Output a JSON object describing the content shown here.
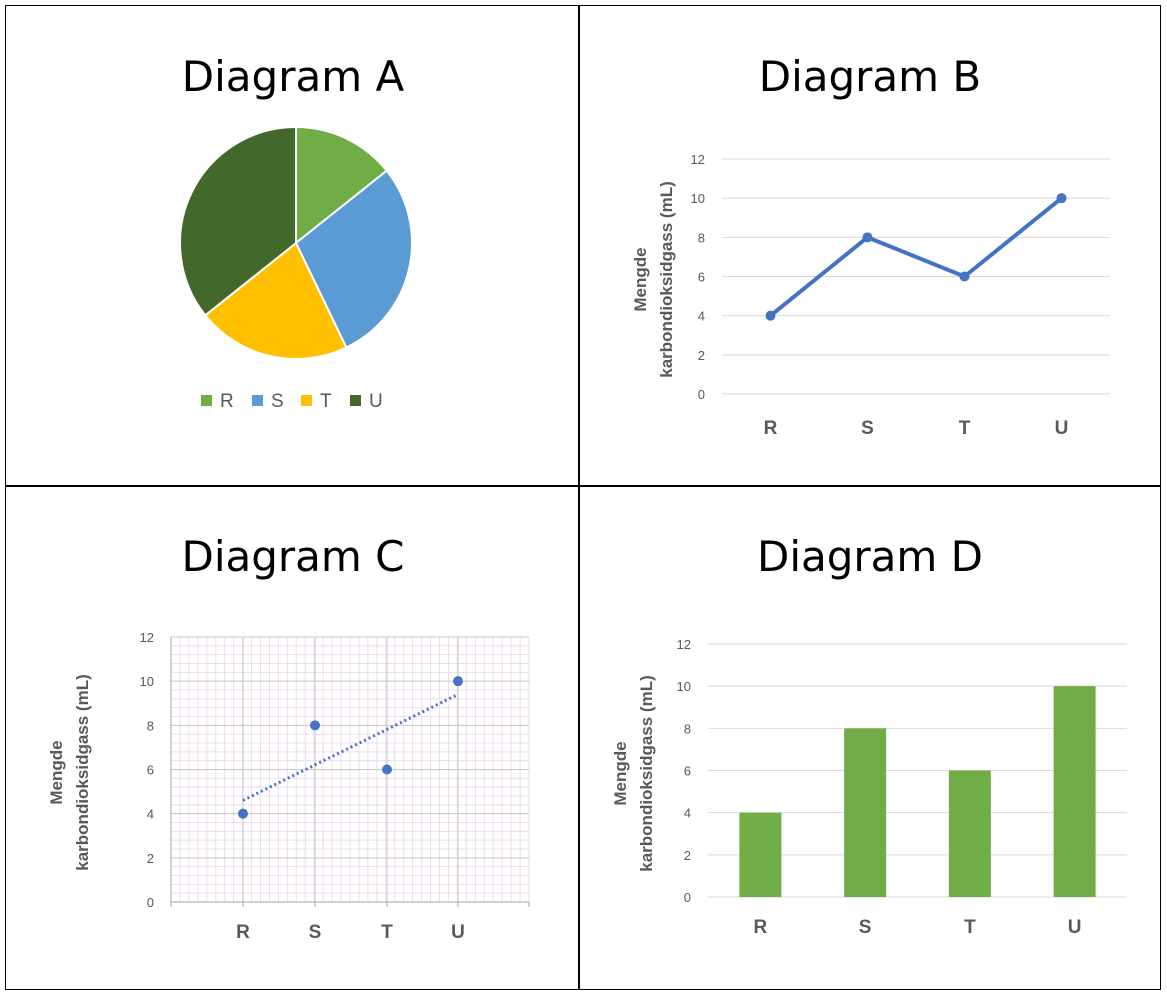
{
  "titles": {
    "a": "Diagram A",
    "b": "Diagram B",
    "c": "Diagram C",
    "d": "Diagram D"
  },
  "chart_data": [
    {
      "type": "pie",
      "title": "Diagram A",
      "categories": [
        "R",
        "S",
        "T",
        "U"
      ],
      "values": [
        4,
        8,
        6,
        10
      ],
      "colors": [
        "#70AD47",
        "#5B9BD5",
        "#FFC000",
        "#43682B"
      ],
      "legend": "bottom"
    },
    {
      "type": "line",
      "title": "Diagram B",
      "categories": [
        "R",
        "S",
        "T",
        "U"
      ],
      "values": [
        4,
        8,
        6,
        10
      ],
      "ylabel": [
        "Mengde",
        "karbondioksidgass (mL)"
      ],
      "ylim": [
        0,
        12
      ],
      "yticks": [
        "0",
        "2",
        "4",
        "6",
        "8",
        "10",
        "12"
      ],
      "color": "#4472C4",
      "grid": true
    },
    {
      "type": "scatter",
      "title": "Diagram C",
      "categories": [
        "R",
        "S",
        "T",
        "U"
      ],
      "values": [
        4,
        8,
        6,
        10
      ],
      "trendline": true,
      "ylabel": [
        "Mengde",
        "karbondioksidgass (mL)"
      ],
      "ylim": [
        0,
        12
      ],
      "yticks": [
        "0",
        "2",
        "4",
        "6",
        "8",
        "10",
        "12"
      ],
      "color": "#4472C4",
      "grid": true
    },
    {
      "type": "bar",
      "title": "Diagram D",
      "categories": [
        "R",
        "S",
        "T",
        "U"
      ],
      "values": [
        4,
        8,
        6,
        10
      ],
      "ylabel": [
        "Mengde",
        "karbondioksidgass (mL)"
      ],
      "ylim": [
        0,
        12
      ],
      "yticks": [
        "0",
        "2",
        "4",
        "6",
        "8",
        "10",
        "12"
      ],
      "color": "#70AD47",
      "grid": true
    }
  ]
}
